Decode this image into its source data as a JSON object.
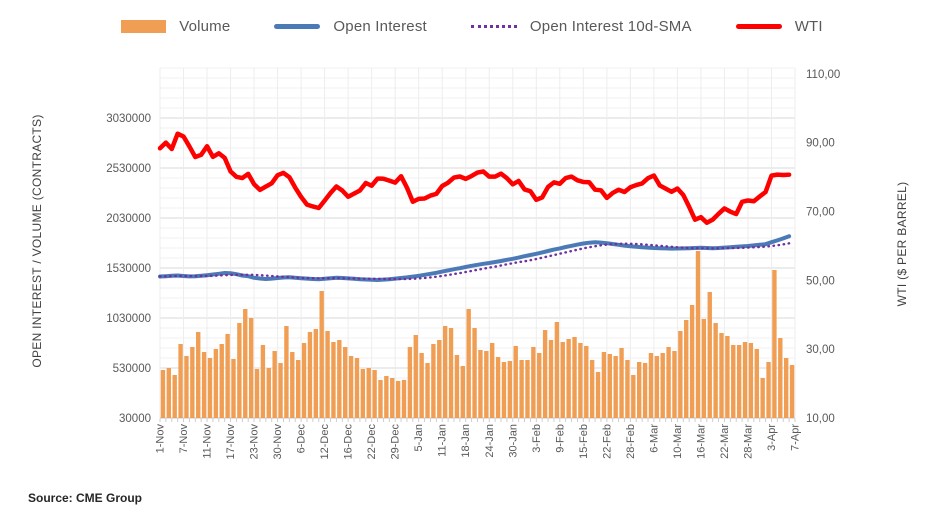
{
  "legend": {
    "items": [
      {
        "label": "Volume",
        "swatch": "bar",
        "color": "#F09E53"
      },
      {
        "label": "Open Interest",
        "swatch": "line",
        "color": "#4C7AB6"
      },
      {
        "label": "Open Interest 10d-SMA",
        "swatch": "dotted-line",
        "color": "#7030A0"
      },
      {
        "label": "WTI",
        "swatch": "line",
        "color": "#FE0000"
      }
    ]
  },
  "source_note": "Source: CME Group",
  "chart_data": {
    "type": "combo",
    "grid": "on",
    "legend_position": "top",
    "x_axis": {
      "tick_labels": [
        "1-Nov",
        "7-Nov",
        "11-Nov",
        "17-Nov",
        "23-Nov",
        "30-Nov",
        "6-Dec",
        "12-Dec",
        "16-Dec",
        "22-Dec",
        "29-Dec",
        "5-Jan",
        "11-Jan",
        "18-Jan",
        "24-Jan",
        "30-Jan",
        "3-Feb",
        "9-Feb",
        "15-Feb",
        "22-Feb",
        "28-Feb",
        "6-Mar",
        "10-Mar",
        "16-Mar",
        "22-Mar",
        "28-Mar",
        "3-Apr",
        "7-Apr"
      ],
      "label_every_n_points": 4,
      "n_points": 108
    },
    "left_axis": {
      "title": "OPEN INTEREST / VOLUME (CONTRACTS)",
      "tick_labels": [
        "30000",
        "530000",
        "1030000",
        "1530000",
        "2030000",
        "2530000",
        "3030000"
      ],
      "tick_values": [
        30000,
        530000,
        1030000,
        1530000,
        2030000,
        2530000,
        3030000
      ],
      "min": 30000,
      "max": 3530000,
      "minor_grid_step": 100000
    },
    "right_axis": {
      "title": "WTI ($ PER BARREL)",
      "tick_labels": [
        "10,00",
        "30,00",
        "50,00",
        "70,00",
        "90,00",
        "110,00"
      ],
      "tick_values": [
        10,
        30,
        50,
        70,
        90,
        110
      ],
      "min": 10,
      "max": 111.7
    },
    "series": [
      {
        "name": "Volume",
        "type": "bar",
        "axis": "left",
        "color": "#F09E53",
        "values": [
          510000,
          530000,
          460000,
          770000,
          650000,
          740000,
          890000,
          690000,
          630000,
          720000,
          770000,
          870000,
          620000,
          980000,
          1120000,
          1030000,
          520000,
          760000,
          530000,
          700000,
          580000,
          950000,
          690000,
          610000,
          780000,
          890000,
          920000,
          1300000,
          900000,
          790000,
          810000,
          740000,
          650000,
          630000,
          520000,
          530000,
          510000,
          410000,
          450000,
          430000,
          400000,
          410000,
          740000,
          860000,
          680000,
          580000,
          770000,
          810000,
          950000,
          930000,
          660000,
          550000,
          1120000,
          930000,
          710000,
          700000,
          780000,
          640000,
          590000,
          600000,
          750000,
          610000,
          610000,
          740000,
          680000,
          910000,
          810000,
          990000,
          790000,
          820000,
          840000,
          780000,
          750000,
          610000,
          490000,
          690000,
          670000,
          650000,
          730000,
          610000,
          460000,
          590000,
          580000,
          680000,
          650000,
          680000,
          740000,
          700000,
          900000,
          1010000,
          1160000,
          1700000,
          1020000,
          1290000,
          980000,
          880000,
          850000,
          760000,
          760000,
          790000,
          780000,
          720000,
          430000,
          590000,
          1510000,
          830000,
          630000,
          560000
        ]
      },
      {
        "name": "Open Interest",
        "type": "line",
        "axis": "left",
        "color": "#4C7AB6",
        "stroke_width": 4,
        "values": [
          1445000,
          1448000,
          1452000,
          1455000,
          1450000,
          1446000,
          1448000,
          1452000,
          1458000,
          1465000,
          1472000,
          1480000,
          1478000,
          1468000,
          1455000,
          1448000,
          1432000,
          1425000,
          1420000,
          1424000,
          1430000,
          1435000,
          1438000,
          1432000,
          1428000,
          1424000,
          1420000,
          1418000,
          1422000,
          1428000,
          1432000,
          1430000,
          1426000,
          1422000,
          1418000,
          1415000,
          1412000,
          1410000,
          1414000,
          1418000,
          1424000,
          1430000,
          1436000,
          1444000,
          1452000,
          1462000,
          1472000,
          1482000,
          1494000,
          1506000,
          1518000,
          1528000,
          1540000,
          1552000,
          1562000,
          1572000,
          1580000,
          1590000,
          1600000,
          1612000,
          1622000,
          1634000,
          1648000,
          1660000,
          1672000,
          1686000,
          1700000,
          1714000,
          1726000,
          1740000,
          1752000,
          1764000,
          1775000,
          1783000,
          1788000,
          1784000,
          1778000,
          1770000,
          1762000,
          1754000,
          1748000,
          1742000,
          1738000,
          1734000,
          1730000,
          1728000,
          1726000,
          1724000,
          1725000,
          1726000,
          1728000,
          1730000,
          1732000,
          1730000,
          1728000,
          1730000,
          1734000,
          1738000,
          1742000,
          1746000,
          1750000,
          1756000,
          1762000,
          1768000,
          1788000,
          1806000,
          1826000,
          1848000
        ]
      },
      {
        "name": "Open Interest 10d-SMA",
        "type": "line",
        "style": "dotted",
        "axis": "left",
        "color": "#7030A0",
        "stroke_width": 2.4,
        "window": 10,
        "values": [
          1445000,
          1447000,
          1448000,
          1450000,
          1450000,
          1449000,
          1449000,
          1450000,
          1450000,
          1452000,
          1455000,
          1458000,
          1460000,
          1462000,
          1462000,
          1462000,
          1461000,
          1458000,
          1454000,
          1450000,
          1446000,
          1442000,
          1438000,
          1434000,
          1431000,
          1429000,
          1428000,
          1427000,
          1427000,
          1428000,
          1428000,
          1427000,
          1426000,
          1425000,
          1424000,
          1423000,
          1422000,
          1422000,
          1421000,
          1420000,
          1419000,
          1419000,
          1420000,
          1422000,
          1426000,
          1430000,
          1436000,
          1443000,
          1451000,
          1460000,
          1470000,
          1479000,
          1490000,
          1501000,
          1512000,
          1523000,
          1534000,
          1544000,
          1555000,
          1567000,
          1578000,
          1589000,
          1597000,
          1608000,
          1620000,
          1633000,
          1646000,
          1659000,
          1673000,
          1686000,
          1700000,
          1713000,
          1726000,
          1738000,
          1748000,
          1757000,
          1764000,
          1769000,
          1772000,
          1773000,
          1772000,
          1770000,
          1767000,
          1762000,
          1757000,
          1752000,
          1747000,
          1742000,
          1737000,
          1733000,
          1730000,
          1728000,
          1727000,
          1727000,
          1727000,
          1727000,
          1728000,
          1729000,
          1730000,
          1732000,
          1734000,
          1737000,
          1740000,
          1744000,
          1750000,
          1757000,
          1766000,
          1777000
        ]
      },
      {
        "name": "WTI",
        "type": "line",
        "axis": "right",
        "color": "#FE0000",
        "stroke_width": 4.5,
        "values": [
          88.37,
          90.0,
          88.17,
          92.61,
          91.79,
          88.91,
          85.83,
          86.47,
          88.96,
          85.87,
          86.92,
          85.59,
          81.64,
          80.08,
          79.73,
          80.95,
          77.94,
          76.28,
          77.24,
          78.2,
          80.55,
          81.22,
          79.98,
          76.93,
          74.25,
          72.01,
          71.46,
          71.02,
          73.17,
          75.39,
          77.28,
          76.11,
          74.29,
          75.19,
          76.09,
          78.29,
          77.49,
          79.56,
          79.53,
          78.96,
          78.4,
          80.26,
          76.93,
          72.84,
          73.67,
          73.77,
          74.63,
          75.12,
          77.41,
          78.39,
          79.86,
          80.18,
          79.48,
          80.33,
          81.31,
          81.62,
          80.13,
          80.15,
          81.01,
          79.68,
          77.9,
          78.87,
          76.41,
          75.88,
          73.39,
          74.11,
          77.14,
          78.47,
          78.06,
          79.72,
          80.14,
          79.06,
          78.59,
          78.49,
          76.34,
          76.16,
          73.95,
          75.39,
          76.32,
          75.68,
          77.05,
          77.69,
          78.16,
          79.68,
          80.46,
          77.58,
          76.66,
          75.72,
          76.68,
          74.8,
          71.33,
          67.61,
          68.35,
          66.74,
          67.64,
          69.33,
          70.9,
          69.96,
          69.26,
          72.81,
          73.2,
          72.97,
          74.37,
          75.67,
          80.42,
          80.71,
          80.61,
          80.7
        ]
      }
    ]
  }
}
